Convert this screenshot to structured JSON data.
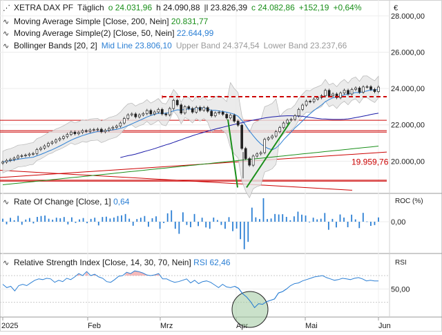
{
  "header": {
    "symbol": "XETRA DAX PF",
    "interval": "Täglich",
    "open": "o 24.031,96",
    "high": "h 24.090,88",
    "low": "l 23.826,39",
    "close": "c 24.082,86",
    "change": "+152,19",
    "change_pct": "+0,64%",
    "currency": "€"
  },
  "indicators": {
    "ma200_label": "Moving Average Simple [Close, 200, Nein]",
    "ma200_value": "20.831,77",
    "ma50_label": "Moving Average Simple(2) [Close, 50, Nein]",
    "ma50_value": "22.644,99",
    "bb_label": "Bollinger Bands [20, 2]",
    "bb_mid": "Mid Line 23.806,10",
    "bb_upper": "Upper Band 24.374,54",
    "bb_lower": "Lower Band 23.237,66",
    "roc_label": "Rate Of Change [Close, 1]",
    "roc_value": "0,64",
    "roc_axis_title": "ROC (%)",
    "rsi_label": "Relative Strength Index [Close, 14, 30, 70, Nein]",
    "rsi_value": "RSI 62,46",
    "rsi_axis_title": "RSI"
  },
  "colors": {
    "ma200": "#1a8f1a",
    "ma50": "#1a1aa8",
    "bb_mid": "#2b7fd4",
    "candle_up": "#1a8f1a",
    "candle_down": "#c0392b",
    "resistance": "#cc0000",
    "roc": "#2b7fd4",
    "rsi": "#2b7fd4",
    "trend_green": "#1a8f1a"
  },
  "chart_data": [
    {
      "type": "candlestick",
      "title": "XETRA DAX PF Täglich",
      "x_tick_labels": [
        "2025",
        "Feb",
        "Mrz",
        "Apr",
        "Mai",
        "Jun"
      ],
      "y_tick_labels": [
        "28.000,00",
        "26.000,00",
        "24.000,00",
        "22.000,00",
        "20.000,00"
      ],
      "ylim": [
        18300,
        28800
      ],
      "resistance_dashed": 23550,
      "support_lines": [
        22250,
        21680,
        21600,
        18900
      ],
      "price_label": "19.959,76",
      "closes": [
        19950,
        20040,
        20090,
        20170,
        20280,
        20300,
        20330,
        20390,
        20420,
        20640,
        20720,
        20840,
        20980,
        21050,
        21170,
        21250,
        21350,
        21470,
        21600,
        21510,
        21580,
        21680,
        21640,
        21720,
        21740,
        21760,
        21620,
        21700,
        21800,
        21860,
        21930,
        22100,
        22350,
        22550,
        22600,
        22440,
        22550,
        22620,
        22790,
        22600,
        22710,
        22850,
        22600,
        22550,
        22900,
        23350,
        23100,
        22650,
        23000,
        22900,
        22700,
        22960,
        22800,
        22950,
        22750,
        22500,
        22650,
        22700,
        22580,
        22380,
        22530,
        22200,
        21980,
        20700,
        20140,
        19780,
        20280,
        20400,
        20470,
        21200,
        21280,
        21380,
        21620,
        21850,
        22100,
        22260,
        22300,
        22500,
        22850,
        23090,
        23300,
        23280,
        23420,
        23500,
        23600,
        23900,
        23600,
        23700,
        23500,
        23750,
        23900,
        23700,
        23950,
        24030,
        23800,
        24090,
        24100,
        23950,
        23830,
        24080
      ],
      "ma50": [
        20200,
        20250,
        20300,
        20340,
        20390,
        20450,
        20510,
        20570,
        20630,
        20690,
        20760,
        20830,
        20900,
        20960,
        21030,
        21110,
        21180,
        21260,
        21330,
        21400,
        21470,
        21530,
        21590,
        21650,
        21710,
        21770,
        21820,
        21870,
        21920,
        21970,
        22020,
        22070,
        22120,
        22170,
        22220,
        22260,
        22300,
        22340,
        22380,
        22410,
        22440,
        22460,
        22480,
        22490,
        22500,
        22500,
        22490,
        22480,
        22470,
        22440,
        22410,
        22380,
        22350,
        22330,
        22320,
        22310,
        22300,
        22300,
        22300,
        22310,
        22330,
        22360,
        22400,
        22440,
        22480,
        22520,
        22570,
        22610,
        22640
      ]
    },
    {
      "type": "bar",
      "title": "Rate Of Change [Close, 1]",
      "y_tick_labels": [
        "0,00"
      ],
      "values": [
        0.45,
        -0.38,
        0.58,
        0.22,
        0.88,
        -0.45,
        0.32,
        0.55,
        -0.25,
        0.72,
        0.85,
        0.92,
        0.45,
        0.3,
        0.6,
        0.52,
        0.7,
        -0.4,
        0.65,
        -0.18,
        0.35,
        0.55,
        -0.22,
        0.42,
        0.6,
        -0.55,
        0.7,
        0.75,
        0.48,
        0.62,
        0.85,
        0.95,
        1.15,
        0.45,
        -0.6,
        0.4,
        0.6,
        0.85,
        -0.75,
        0.52,
        0.8,
        -1.05,
        -0.2,
        1.25,
        1.7,
        -1.05,
        -1.8,
        1.4,
        -0.48,
        -0.82,
        1.15,
        -0.65,
        0.6,
        -0.85,
        -1.05,
        0.62,
        0.25,
        -0.48,
        -1.05,
        0.68,
        -1.4,
        -1.02,
        -2.6,
        -4.1,
        -3.0,
        2.1,
        0.65,
        0.4,
        3.5,
        0.4,
        0.48,
        1.15,
        1.08,
        1.12,
        0.72,
        0.22,
        0.8,
        1.5,
        1.05,
        0.92,
        -0.1,
        0.6,
        0.35,
        0.45,
        1.3,
        -1.2,
        0.42,
        -0.85,
        1.08,
        0.62,
        -0.82,
        1.05,
        0.35,
        -0.95,
        1.32,
        0.04,
        -0.62,
        -0.5,
        0.64
      ]
    },
    {
      "type": "line",
      "title": "Relative Strength Index [Close, 14, 30, 70, Nein]",
      "y_tick_labels": [
        "50,00"
      ],
      "ylim": [
        10,
        100
      ],
      "overbought": 70,
      "oversold": 30,
      "values": [
        57,
        52,
        54,
        47,
        55,
        57,
        55,
        59,
        63,
        65,
        64,
        66,
        65,
        60,
        63,
        61,
        66,
        64,
        68,
        73,
        70,
        76,
        70,
        72,
        68,
        66,
        61,
        60,
        64,
        69,
        70,
        75,
        73,
        77,
        76,
        74,
        71,
        70,
        71,
        73,
        65,
        65,
        62,
        60,
        61,
        63,
        65,
        59,
        63,
        58,
        61,
        62,
        60,
        56,
        52,
        57,
        53,
        52,
        54,
        51,
        43,
        38,
        31,
        22,
        28,
        27,
        31,
        33,
        35,
        44,
        46,
        50,
        55,
        58,
        59,
        62,
        64,
        66,
        68,
        69,
        70,
        67,
        65,
        63,
        64,
        66,
        65,
        64,
        66,
        67,
        65,
        62,
        63,
        62,
        62
      ]
    }
  ]
}
